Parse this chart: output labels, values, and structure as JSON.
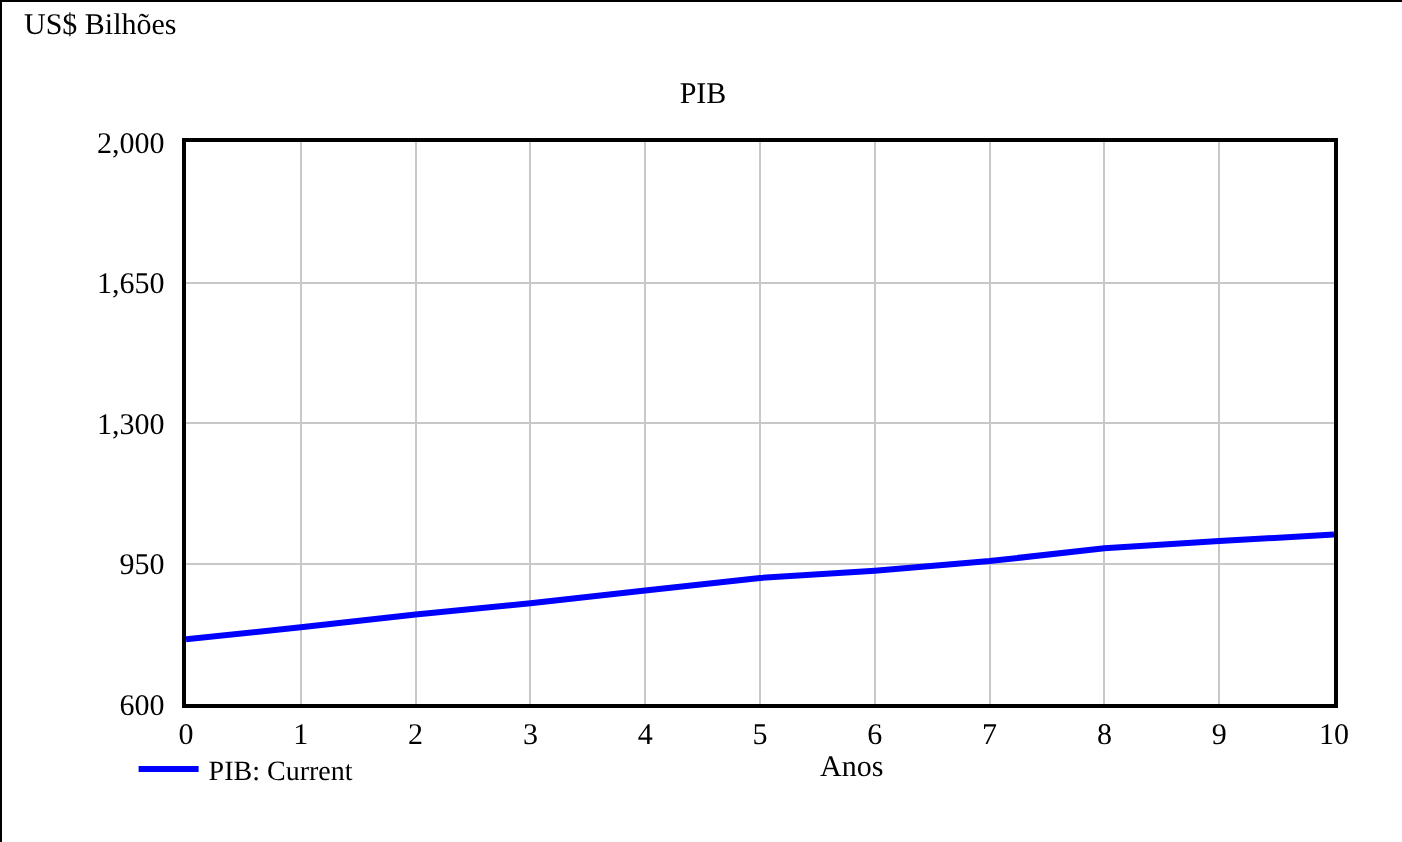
{
  "chart_data": {
    "type": "line",
    "title": "PIB",
    "xlabel": "Anos",
    "ylabel": "US$ Bilhões",
    "x": [
      0,
      1,
      2,
      3,
      4,
      5,
      6,
      7,
      8,
      9,
      10
    ],
    "series": [
      {
        "name": "PIB: Current",
        "color": "#0000ff",
        "values": [
          761,
          791,
          823,
          851,
          883,
          914,
          932,
          956,
          988,
          1006,
          1022
        ]
      }
    ],
    "xlim": [
      0,
      10
    ],
    "xticks": [
      0,
      1,
      2,
      3,
      4,
      5,
      6,
      7,
      8,
      9,
      10
    ],
    "ylim": [
      600,
      2000
    ],
    "yticks": [
      600,
      950,
      {
        "value": 1300,
        "label": "1,300"
      },
      {
        "value": 1650,
        "label": "1,650"
      },
      {
        "value": 2000,
        "label": "2,000"
      }
    ],
    "grid": true,
    "legend": "bottom left",
    "marker": "none",
    "line_style": "solid"
  }
}
